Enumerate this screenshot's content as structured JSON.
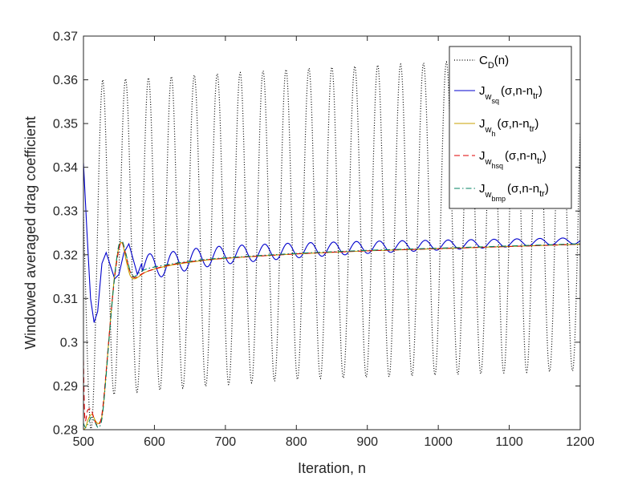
{
  "chart_data": {
    "type": "line",
    "xlabel": "Iteration, n",
    "ylabel": "Windowed averaged drag coefficient",
    "xlim": [
      500,
      1200
    ],
    "ylim": [
      0.28,
      0.37
    ],
    "xticks": [
      500,
      600,
      700,
      800,
      900,
      1000,
      1100,
      1200
    ],
    "yticks": [
      0.28,
      0.29,
      0.3,
      0.31,
      0.32,
      0.33,
      0.34,
      0.35,
      0.36,
      0.37
    ],
    "xtick_labels": [
      "500",
      "600",
      "700",
      "800",
      "900",
      "1000",
      "1100",
      "1200"
    ],
    "ytick_labels": [
      "0.28",
      "0.29",
      "0.3",
      "0.31",
      "0.32",
      "0.33",
      "0.34",
      "0.35",
      "0.36",
      "0.37"
    ],
    "grid": false,
    "legend_position": "top-right",
    "series": [
      {
        "name": "C_D(n)",
        "legend": {
          "main": "C",
          "sub": "D",
          "tail": "(n)"
        },
        "color": "#000000",
        "style": "dotted",
        "model": {
          "type": "oscillation",
          "period": 32.3,
          "peak_at": 527,
          "peaks": [
            [
              500,
              0.345
            ],
            [
              527,
              0.36
            ],
            [
              600,
              0.3605
            ],
            [
              800,
              0.3625
            ],
            [
              1000,
              0.364
            ],
            [
              1200,
              0.3655
            ]
          ],
          "troughs": [
            [
              510,
              0.28
            ],
            [
              540,
              0.288
            ],
            [
              600,
              0.289
            ],
            [
              800,
              0.2915
            ],
            [
              1000,
              0.2925
            ],
            [
              1200,
              0.2935
            ]
          ]
        }
      },
      {
        "name": "J_wsq(σ,n-n_tr)",
        "legend": {
          "main": "J",
          "sub": "w",
          "subsub": "sq",
          "tail": "(σ,n-n",
          "tailsub": "tr",
          "close": ")"
        },
        "color": "#0000cc",
        "style": "solid",
        "points": [
          [
            500,
            0.341
          ],
          [
            505,
            0.325
          ],
          [
            510,
            0.31
          ],
          [
            515,
            0.3045
          ],
          [
            520,
            0.307
          ],
          [
            526,
            0.318
          ],
          [
            532,
            0.3205
          ],
          [
            538,
            0.3175
          ],
          [
            544,
            0.3145
          ],
          [
            550,
            0.3155
          ],
          [
            557,
            0.3205
          ],
          [
            564,
            0.3225
          ],
          [
            570,
            0.319
          ],
          [
            576,
            0.3155
          ],
          [
            582,
            0.318
          ]
        ],
        "osc": {
          "start": 582,
          "period": 32.3,
          "amp_start": 0.0032,
          "amp_end": 0.0007,
          "phase_at": 594
        }
      },
      {
        "name": "J_wh(σ,n-n_tr)",
        "legend": {
          "main": "J",
          "sub": "w",
          "subsub": "h",
          "tail": "(σ,n-n",
          "tailsub": "tr",
          "close": ")"
        },
        "color": "#c8a000",
        "style": "solid",
        "points": [
          [
            500,
            0.28
          ],
          [
            503,
            0.2805
          ],
          [
            507,
            0.2825
          ],
          [
            512,
            0.2835
          ],
          [
            517,
            0.282
          ],
          [
            522,
            0.2815
          ],
          [
            527,
            0.284
          ],
          [
            532,
            0.293
          ],
          [
            538,
            0.305
          ],
          [
            544,
            0.3155
          ],
          [
            550,
            0.3218
          ],
          [
            555,
            0.3225
          ],
          [
            560,
            0.3188
          ],
          [
            566,
            0.3152
          ],
          [
            572,
            0.3145
          ],
          [
            578,
            0.315
          ],
          [
            590,
            0.3162
          ],
          [
            620,
            0.3175
          ],
          [
            660,
            0.3185
          ],
          [
            700,
            0.3192
          ],
          [
            800,
            0.3202
          ],
          [
            900,
            0.3209
          ],
          [
            1000,
            0.3214
          ],
          [
            1100,
            0.3219
          ],
          [
            1200,
            0.3224
          ]
        ]
      },
      {
        "name": "J_whsq(σ,n-n_tr)",
        "legend": {
          "main": "J",
          "sub": "w",
          "subsub": "hsq",
          "tail": "(σ,n-n",
          "tailsub": "tr",
          "close": ")"
        },
        "color": "#e00000",
        "style": "dashed",
        "points": [
          [
            500,
            0.296
          ],
          [
            502,
            0.2825
          ],
          [
            506,
            0.2845
          ],
          [
            511,
            0.2845
          ],
          [
            516,
            0.282
          ],
          [
            521,
            0.281
          ],
          [
            526,
            0.2835
          ],
          [
            531,
            0.2915
          ],
          [
            537,
            0.303
          ],
          [
            543,
            0.3135
          ],
          [
            549,
            0.3205
          ],
          [
            554,
            0.323
          ],
          [
            559,
            0.3205
          ],
          [
            565,
            0.3165
          ],
          [
            571,
            0.3148
          ],
          [
            578,
            0.3152
          ],
          [
            590,
            0.3162
          ],
          [
            620,
            0.3176
          ],
          [
            660,
            0.3186
          ],
          [
            700,
            0.3192
          ],
          [
            800,
            0.3202
          ],
          [
            900,
            0.3209
          ],
          [
            1000,
            0.3214
          ],
          [
            1100,
            0.3219
          ],
          [
            1200,
            0.3224
          ]
        ]
      },
      {
        "name": "J_wbmp(σ,n-n_tr)",
        "legend": {
          "main": "J",
          "sub": "w",
          "subsub": "bmp",
          "tail": "(σ,n-n",
          "tailsub": "tr",
          "close": ")"
        },
        "color": "#008060",
        "style": "dashdot",
        "points": [
          [
            500,
            0.2815
          ],
          [
            503,
            0.2805
          ],
          [
            507,
            0.2815
          ],
          [
            511,
            0.2828
          ],
          [
            516,
            0.2818
          ],
          [
            521,
            0.2805
          ],
          [
            526,
            0.2825
          ],
          [
            531,
            0.2905
          ],
          [
            537,
            0.3025
          ],
          [
            543,
            0.3135
          ],
          [
            549,
            0.3215
          ],
          [
            554,
            0.3232
          ],
          [
            559,
            0.3208
          ],
          [
            565,
            0.3168
          ],
          [
            571,
            0.315
          ],
          [
            578,
            0.3158
          ],
          [
            590,
            0.3168
          ],
          [
            620,
            0.3178
          ],
          [
            660,
            0.3187
          ],
          [
            700,
            0.3193
          ],
          [
            800,
            0.3203
          ],
          [
            900,
            0.321
          ],
          [
            1000,
            0.3215
          ],
          [
            1100,
            0.322
          ],
          [
            1200,
            0.3225
          ]
        ]
      }
    ]
  }
}
